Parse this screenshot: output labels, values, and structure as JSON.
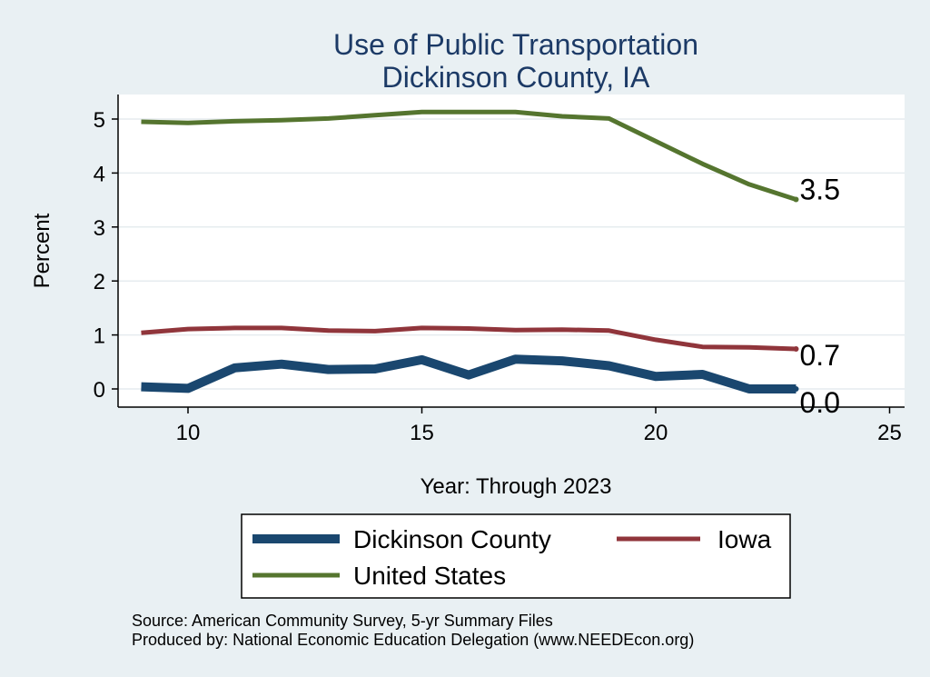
{
  "chart_data": {
    "type": "line",
    "title": [
      "Use of Public Transportation",
      "Dickinson County, IA"
    ],
    "xlabel": "Year: Through 2023",
    "ylabel": "Percent",
    "xlim": [
      9,
      25
    ],
    "ylim": [
      0,
      5
    ],
    "xticks": [
      10,
      15,
      20,
      25
    ],
    "yticks": [
      0,
      1,
      2,
      3,
      4,
      5
    ],
    "grid": true,
    "legend": "bottom",
    "x": [
      9,
      10,
      11,
      12,
      13,
      14,
      15,
      16,
      17,
      18,
      19,
      20,
      21,
      22,
      23
    ],
    "series": [
      {
        "name": "Dickinson County",
        "color": "#1a476f",
        "values": [
          0.04,
          0.01,
          0.39,
          0.46,
          0.36,
          0.37,
          0.54,
          0.26,
          0.55,
          0.52,
          0.43,
          0.23,
          0.27,
          0.0,
          0.0
        ],
        "end_label": "0.0"
      },
      {
        "name": "Iowa",
        "color": "#90353b",
        "values": [
          1.04,
          1.11,
          1.13,
          1.13,
          1.08,
          1.07,
          1.13,
          1.12,
          1.09,
          1.1,
          1.08,
          0.91,
          0.78,
          0.77,
          0.74
        ],
        "end_label": "0.7"
      },
      {
        "name": "United States",
        "color": "#55752f",
        "values": [
          4.95,
          4.93,
          4.96,
          4.98,
          5.01,
          5.07,
          5.13,
          5.13,
          5.13,
          5.05,
          5.01,
          4.59,
          4.17,
          3.79,
          3.51
        ],
        "end_label": "3.5"
      }
    ],
    "notes": [
      "Source: American Community Survey, 5-yr Summary Files",
      "Produced by: National Economic Education Delegation (www.NEEDEcon.org)"
    ]
  }
}
